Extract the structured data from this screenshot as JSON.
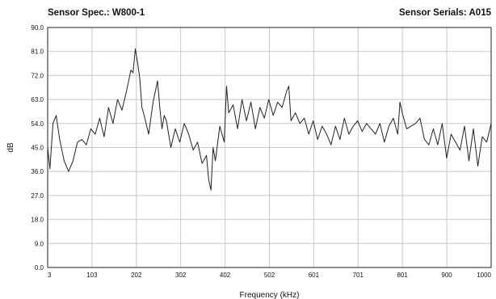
{
  "header": {
    "left": "Sensor Spec.: W800-1",
    "right": "Sensor Serials: A015"
  },
  "chart_data": {
    "type": "line",
    "xlabel": "Frequency (kHz)",
    "ylabel": "dB",
    "xlim": [
      3,
      1000
    ],
    "ylim": [
      0,
      90
    ],
    "grid": true,
    "legend": "none",
    "x_ticks": [
      "3",
      "103",
      "202",
      "302",
      "402",
      "502",
      "601",
      "701",
      "801",
      "900",
      "1000"
    ],
    "y_ticks": [
      "0.0",
      "9.0",
      "18.0",
      "27.0",
      "36.0",
      "45.0",
      "54.0",
      "63.0",
      "72.0",
      "81.0",
      "90.0"
    ],
    "line_color": "#222222",
    "series": [
      {
        "x": [
          3,
          8,
          15,
          22,
          30,
          40,
          50,
          60,
          70,
          80,
          90,
          100,
          110,
          120,
          130,
          140,
          150,
          160,
          170,
          180,
          190,
          195,
          200,
          205,
          210,
          215,
          220,
          230,
          240,
          250,
          255,
          260,
          265,
          270,
          280,
          290,
          300,
          310,
          320,
          330,
          340,
          350,
          360,
          365,
          370,
          375,
          380,
          390,
          400,
          402,
          405,
          410,
          420,
          430,
          440,
          450,
          460,
          470,
          480,
          490,
          500,
          510,
          520,
          530,
          540,
          545,
          550,
          560,
          570,
          580,
          590,
          600,
          610,
          620,
          630,
          640,
          650,
          660,
          670,
          680,
          690,
          700,
          710,
          720,
          730,
          740,
          750,
          760,
          770,
          780,
          790,
          795,
          800,
          810,
          820,
          830,
          840,
          850,
          860,
          870,
          880,
          890,
          900,
          910,
          920,
          930,
          940,
          950,
          960,
          970,
          980,
          990,
          1000
        ],
        "y": [
          45,
          37,
          54,
          57,
          48,
          40,
          36,
          40,
          47,
          48,
          46,
          52,
          50,
          56,
          49,
          60,
          54,
          63,
          59,
          66,
          74,
          73,
          82,
          77,
          71,
          60,
          57,
          50,
          62,
          70,
          60,
          52,
          57,
          55,
          45,
          52,
          47,
          54,
          50,
          44,
          47,
          39,
          42,
          33,
          29,
          45,
          40,
          53,
          47,
          55,
          68,
          58,
          61,
          52,
          63,
          55,
          62,
          52,
          60,
          56,
          63,
          57,
          62,
          60,
          66,
          68,
          55,
          58,
          54,
          56,
          50,
          55,
          48,
          53,
          50,
          46,
          53,
          48,
          56,
          50,
          53,
          55,
          51,
          54,
          52,
          50,
          54,
          47,
          53,
          56,
          50,
          62,
          58,
          52,
          53,
          54,
          56,
          48,
          46,
          52,
          46,
          54,
          41,
          50,
          47,
          44,
          53,
          40,
          52,
          38,
          49,
          47,
          54
        ]
      }
    ]
  }
}
